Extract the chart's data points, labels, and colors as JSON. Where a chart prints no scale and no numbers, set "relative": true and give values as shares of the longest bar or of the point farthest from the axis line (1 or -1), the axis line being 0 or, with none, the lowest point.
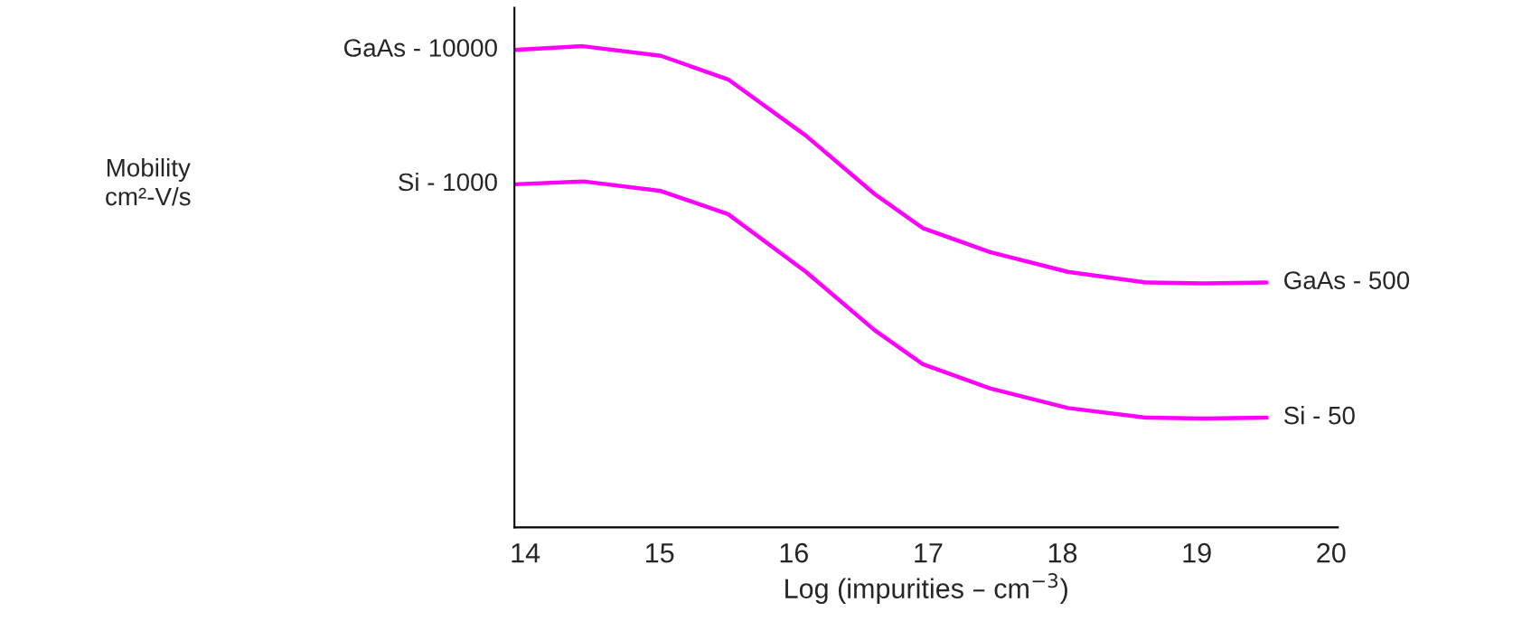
{
  "chart_data": {
    "type": "line",
    "relative": true,
    "xlabel": "Log (impurities – cm$^{−3}$)",
    "x": [
      13.92,
      14.43,
      15.01,
      15.51,
      16.09,
      16.6,
      16.96,
      17.46,
      18.04,
      18.62,
      19.05,
      19.52
    ],
    "xlim": [
      13.92,
      20.05
    ],
    "xticks": [
      14,
      15,
      16,
      17,
      18,
      19,
      20
    ],
    "series": [
      {
        "color": "#ff00ff",
        "values": [
          0.992,
          1.0,
          0.98,
          0.931,
          0.814,
          0.693,
          0.622,
          0.572,
          0.531,
          0.509,
          0.507,
          0.509
        ]
      },
      {
        "color": "#ff00ff",
        "values": [
          0.713,
          0.719,
          0.699,
          0.651,
          0.531,
          0.41,
          0.339,
          0.289,
          0.248,
          0.228,
          0.226,
          0.228
        ]
      }
    ],
    "annotations": [
      "GaAs - 10000",
      "Si - 1000",
      "GaAs - 500",
      "Si - 50",
      "Mobility\ncm²-V/s"
    ],
    "marker": "none",
    "line_style": "solid"
  }
}
